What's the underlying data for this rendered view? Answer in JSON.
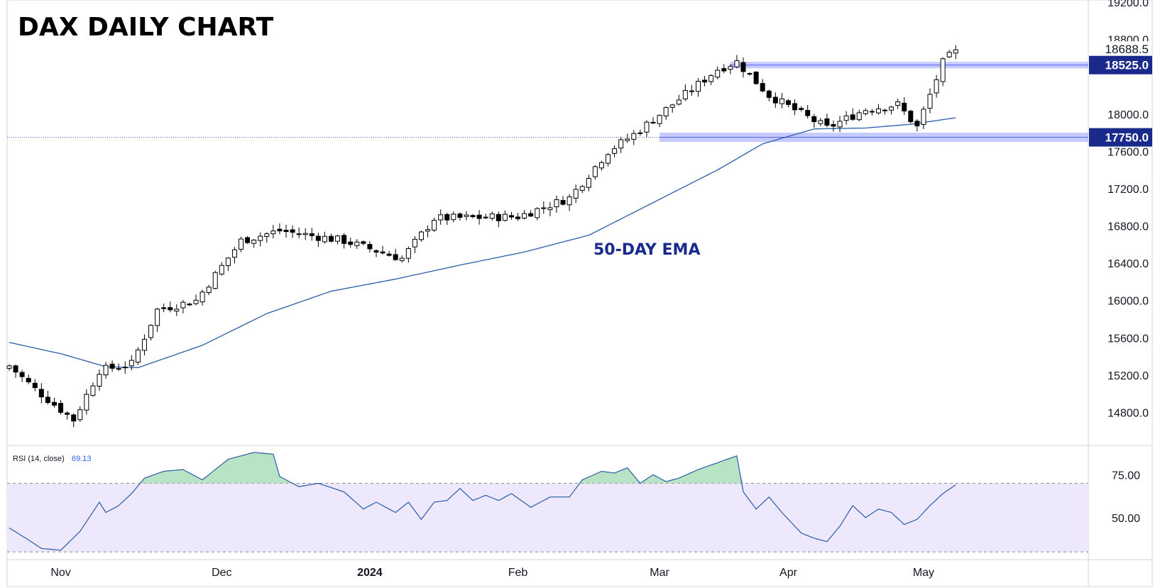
{
  "chart_data": {
    "type": "candlestick",
    "title": "DAX DAILY CHART",
    "annotation": "50-DAY EMA",
    "price_axis": {
      "ticks": [
        "19200.0",
        "18800.0",
        "18000.0",
        "17600.0",
        "17200.0",
        "16800.0",
        "16400.0",
        "16000.0",
        "15600.0",
        "15200.0",
        "14800.0"
      ],
      "tick_values": [
        19200,
        18800,
        18000,
        17600,
        17200,
        16800,
        16400,
        16000,
        15600,
        15200,
        14800
      ],
      "ylim": [
        14560,
        19200
      ]
    },
    "time_axis": {
      "labels": [
        "Nov",
        "Dec",
        "2024",
        "Feb",
        "Mar",
        "Apr",
        "May"
      ],
      "label_bar_index": [
        8,
        33,
        56,
        79,
        101,
        121,
        142
      ]
    },
    "levels": [
      {
        "value": 18525.0,
        "label": "18525.0",
        "band": [
          18490,
          18560
        ],
        "badge_color": "#1a2a8c"
      },
      {
        "value": 17750.0,
        "label": "17750.0",
        "band": [
          17700,
          17800
        ],
        "badge_color": "#1a2a8c"
      }
    ],
    "last_price": {
      "value": 18688.5,
      "label": "18688.5"
    },
    "band_color": "#b3b9ff",
    "ohlc_key_points": [
      {
        "i": 0,
        "close": 15300
      },
      {
        "i": 4,
        "close": 15050
      },
      {
        "i": 10,
        "close": 14720
      },
      {
        "i": 14,
        "close": 15250
      },
      {
        "i": 19,
        "close": 15320
      },
      {
        "i": 23,
        "close": 15900
      },
      {
        "i": 29,
        "close": 16000
      },
      {
        "i": 36,
        "close": 16640
      },
      {
        "i": 42,
        "close": 16750
      },
      {
        "i": 52,
        "close": 16640
      },
      {
        "i": 61,
        "close": 16450
      },
      {
        "i": 66,
        "close": 16880
      },
      {
        "i": 79,
        "close": 16900
      },
      {
        "i": 87,
        "close": 17100
      },
      {
        "i": 93,
        "close": 17600
      },
      {
        "i": 97,
        "close": 17780
      },
      {
        "i": 110,
        "close": 18480
      },
      {
        "i": 113,
        "close": 18560
      },
      {
        "i": 118,
        "close": 18200
      },
      {
        "i": 127,
        "close": 17850
      },
      {
        "i": 133,
        "close": 18050
      },
      {
        "i": 138,
        "close": 18100
      },
      {
        "i": 141,
        "close": 17860
      },
      {
        "i": 145,
        "close": 18550
      },
      {
        "i": 147,
        "close": 18688.5
      }
    ],
    "ema50": {
      "label": "50-DAY EMA",
      "color": "#2a5caa",
      "points": [
        [
          0,
          15550
        ],
        [
          8,
          15430
        ],
        [
          15,
          15290
        ],
        [
          20,
          15280
        ],
        [
          30,
          15520
        ],
        [
          40,
          15860
        ],
        [
          50,
          16100
        ],
        [
          60,
          16230
        ],
        [
          70,
          16380
        ],
        [
          80,
          16520
        ],
        [
          90,
          16700
        ],
        [
          100,
          17050
        ],
        [
          110,
          17400
        ],
        [
          117,
          17680
        ],
        [
          125,
          17840
        ],
        [
          133,
          17850
        ],
        [
          140,
          17890
        ],
        [
          147,
          17960
        ]
      ]
    },
    "rsi": {
      "label": "RSI (14, close)",
      "value": "69.13",
      "ticks": [
        "75.00",
        "50.00"
      ],
      "tick_values": [
        75,
        50
      ],
      "upper": 70,
      "lower": 30,
      "ylim": [
        28,
        90
      ],
      "color": "#2a5caa",
      "key_points": [
        [
          0,
          44
        ],
        [
          3,
          37
        ],
        [
          5,
          32
        ],
        [
          8,
          31
        ],
        [
          11,
          42
        ],
        [
          14,
          59
        ],
        [
          15,
          53
        ],
        [
          17,
          57
        ],
        [
          19,
          64
        ],
        [
          21,
          73
        ],
        [
          24,
          77
        ],
        [
          27,
          78
        ],
        [
          30,
          72
        ],
        [
          34,
          84
        ],
        [
          38,
          88
        ],
        [
          41,
          87
        ],
        [
          42,
          74
        ],
        [
          45,
          68
        ],
        [
          48,
          70
        ],
        [
          52,
          65
        ],
        [
          55,
          55
        ],
        [
          57,
          59
        ],
        [
          60,
          53
        ],
        [
          62,
          59
        ],
        [
          64,
          49
        ],
        [
          66,
          59
        ],
        [
          68,
          60
        ],
        [
          70,
          67
        ],
        [
          72,
          60
        ],
        [
          74,
          63
        ],
        [
          76,
          60
        ],
        [
          78,
          64
        ],
        [
          81,
          56
        ],
        [
          84,
          62
        ],
        [
          87,
          62
        ],
        [
          89,
          72
        ],
        [
          92,
          77
        ],
        [
          94,
          76
        ],
        [
          96,
          79
        ],
        [
          98,
          70
        ],
        [
          100,
          75
        ],
        [
          102,
          71
        ],
        [
          104,
          73
        ],
        [
          107,
          78
        ],
        [
          110,
          82
        ],
        [
          113,
          86
        ],
        [
          114,
          65
        ],
        [
          116,
          55
        ],
        [
          118,
          62
        ],
        [
          120,
          53
        ],
        [
          123,
          41
        ],
        [
          125,
          38
        ],
        [
          127,
          36
        ],
        [
          129,
          45
        ],
        [
          131,
          57
        ],
        [
          133,
          50
        ],
        [
          135,
          55
        ],
        [
          137,
          53
        ],
        [
          139,
          46
        ],
        [
          141,
          49
        ],
        [
          143,
          57
        ],
        [
          145,
          64
        ],
        [
          147,
          69.13
        ]
      ]
    }
  }
}
